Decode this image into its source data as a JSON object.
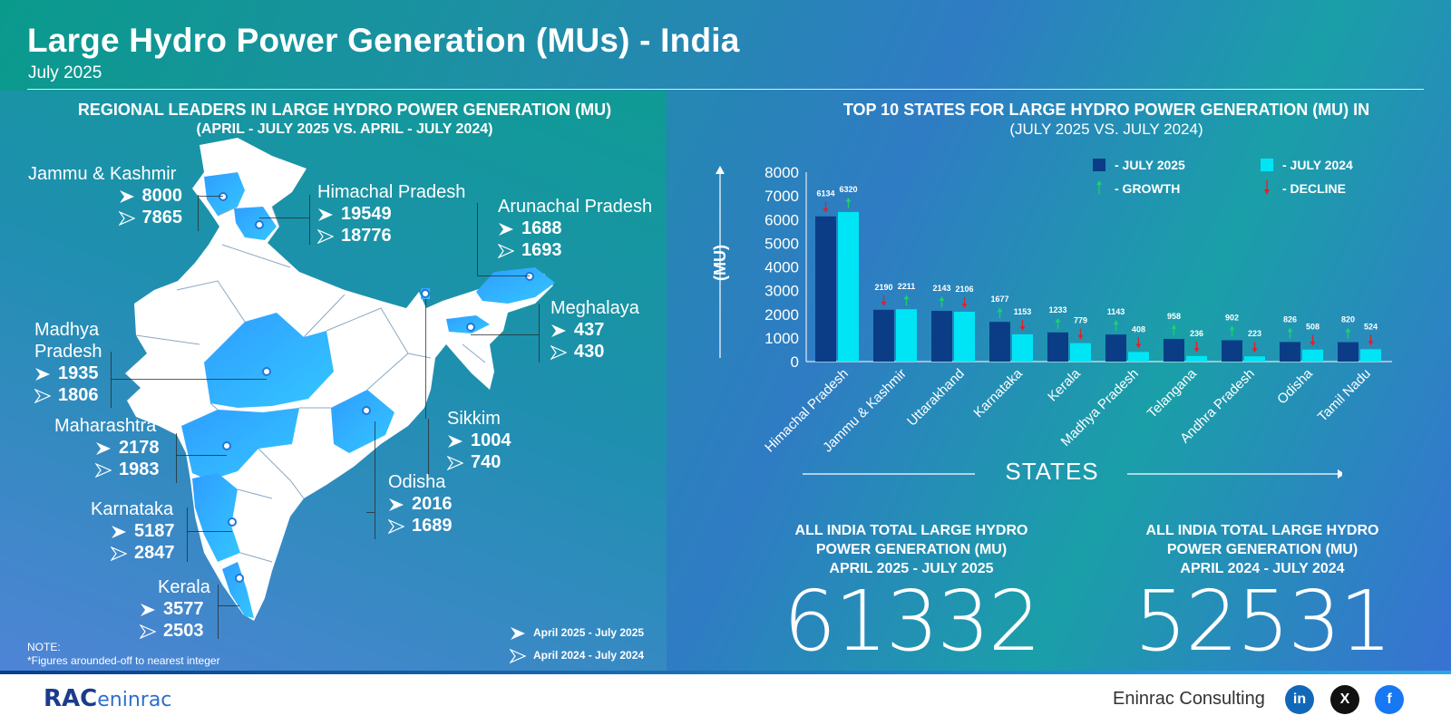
{
  "title": "Large Hydro Power Generation (MUs) - India",
  "subtitle": "July 2025",
  "left_section": {
    "heading_line1": "REGIONAL LEADERS IN LARGE HYDRO POWER GENERATION (MU)",
    "heading_line2": "(APRIL - JULY 2025 VS. APRIL - JULY 2024)",
    "regions": [
      {
        "name": "Jammu & Kashmir",
        "v2025": "8000",
        "v2024": "7865"
      },
      {
        "name": "Himachal Pradesh",
        "v2025": "19549",
        "v2024": "18776"
      },
      {
        "name": "Arunachal Pradesh",
        "v2025": "1688",
        "v2024": "1693"
      },
      {
        "name": "Meghalaya",
        "v2025": "437",
        "v2024": "430"
      },
      {
        "name": "Madhya Pradesh",
        "v2025": "1935",
        "v2024": "1806"
      },
      {
        "name": "Maharashtra",
        "v2025": "2178",
        "v2024": "1983"
      },
      {
        "name": "Sikkim",
        "v2025": "1004",
        "v2024": "740"
      },
      {
        "name": "Odisha",
        "v2025": "2016",
        "v2024": "1689"
      },
      {
        "name": "Karnataka",
        "v2025": "5187",
        "v2024": "2847"
      },
      {
        "name": "Kerala",
        "v2025": "3577",
        "v2024": "2503"
      }
    ],
    "legend_2025": "April 2025 - July 2025",
    "legend_2024": "April 2024 - July 2024",
    "note_title": "NOTE:",
    "note_text": "*Figures arounded-off to nearest integer"
  },
  "chart_data": {
    "type": "bar",
    "title": "TOP 10 STATES FOR LARGE HYDRO POWER GENERATION (MU) IN",
    "subtitle": "(JULY 2025 VS. JULY 2024)",
    "ylabel": "(MU)",
    "xlabel": "STATES",
    "ylim": [
      0,
      8000
    ],
    "yticks": [
      0,
      1000,
      2000,
      3000,
      4000,
      5000,
      6000,
      7000,
      8000
    ],
    "categories": [
      "Himachal Pradesh",
      "Jammu & Kashmir",
      "Uttarakhand",
      "Karnataka",
      "Kerala",
      "Madhya Pradesh",
      "Telangana",
      "Andhra Pradesh",
      "Odisha",
      "Tamil Nadu"
    ],
    "series": [
      {
        "name": "JULY 2025",
        "color": "#0b3d86",
        "values": [
          6134,
          2190,
          2143,
          1677,
          1233,
          1143,
          958,
          902,
          826,
          820
        ]
      },
      {
        "name": "JULY 2024",
        "color": "#00e5f5",
        "values": [
          6320,
          2211,
          2106,
          1153,
          779,
          408,
          236,
          223,
          508,
          524
        ]
      }
    ],
    "legend": {
      "growth": "GROWTH",
      "decline": "DECLINE",
      "growth_color": "#19d36a",
      "decline_color": "#e0202a"
    }
  },
  "totals": [
    {
      "line1": "ALL INDIA TOTAL LARGE HYDRO",
      "line2": "POWER GENERATION (MU)",
      "line3": "APRIL 2025 - JULY 2025",
      "value": "61332"
    },
    {
      "line1": "ALL INDIA TOTAL LARGE HYDRO",
      "line2": "POWER GENERATION (MU)",
      "line3": "APRIL 2024 - JULY 2024",
      "value": "52531"
    }
  ],
  "footer": {
    "logo": "eninrac",
    "brand": "Eninrac Consulting",
    "linkedin": "in",
    "x": "X",
    "facebook": "f"
  }
}
